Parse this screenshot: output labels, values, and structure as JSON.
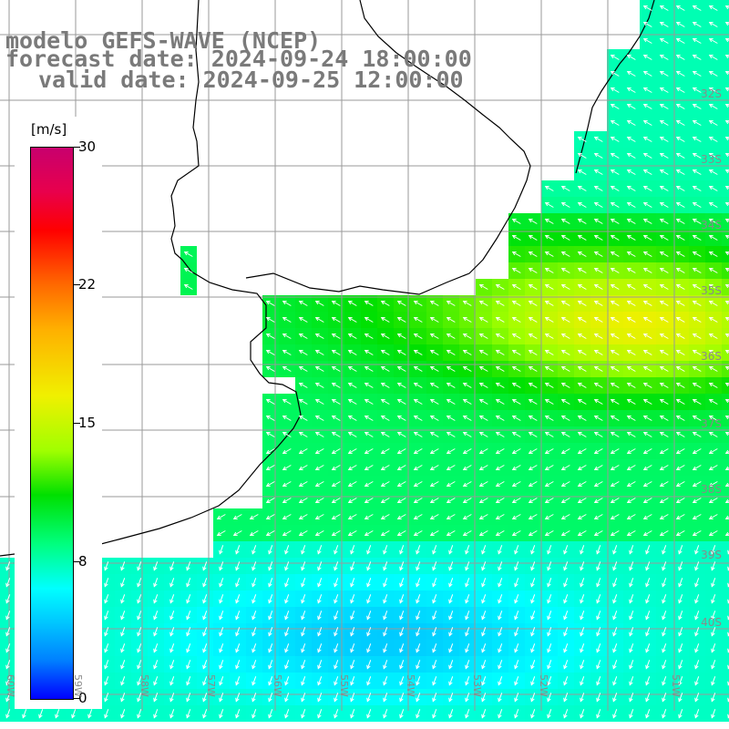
{
  "title": {
    "line1": "modelo GEFS-WAVE (NCEP)",
    "line2": "forecast date: 2024-09-24 18:00:00",
    "line3": "valid date: 2024-09-25 12:00:00"
  },
  "colorbar": {
    "unit": "[m/s]",
    "min": 0,
    "max": 30,
    "ticks": [
      "30",
      "22",
      "15",
      "8",
      "0"
    ],
    "colors": [
      "#0000ff",
      "#0080ff",
      "#00c8ff",
      "#00ffff",
      "#00ff80",
      "#00e000",
      "#a0ff00",
      "#f0f000",
      "#ffb000",
      "#ff6a00",
      "#ff0000",
      "#e8004c",
      "#c8006e"
    ]
  },
  "axes": {
    "lat_labels": [
      "32S",
      "33S",
      "34S",
      "35S",
      "36S",
      "37S",
      "38S",
      "39S",
      "40S"
    ],
    "lon_labels": [
      "60W",
      "59W",
      "58W",
      "57W",
      "56W",
      "55W",
      "54W",
      "53W",
      "52W",
      "51W"
    ]
  }
}
